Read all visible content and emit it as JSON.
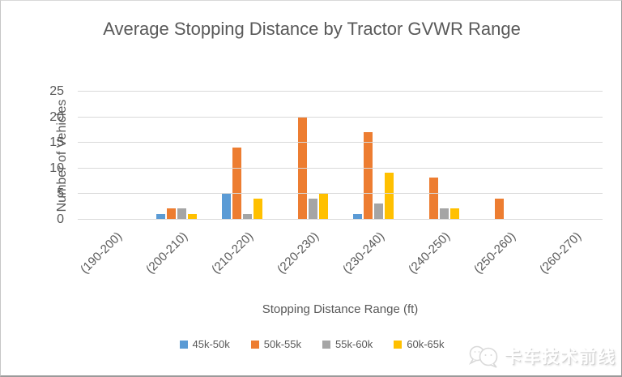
{
  "chart_data": {
    "type": "bar",
    "title": "Average Stopping Distance by Tractor GVWR Range",
    "xlabel": "Stopping Distance Range (ft)",
    "ylabel": "Number of Vehicles",
    "categories": [
      "(190-200)",
      "(200-210)",
      "(210-220)",
      "(220-230)",
      "(230-240)",
      "(240-250)",
      "(250-260)",
      "(260-270)"
    ],
    "series": [
      {
        "name": "45k-50k",
        "color": "#5B9BD5",
        "values": [
          0,
          1,
          5,
          0,
          1,
          0,
          0,
          0
        ]
      },
      {
        "name": "50k-55k",
        "color": "#ED7D31",
        "values": [
          0,
          2,
          14,
          20,
          17,
          8,
          4,
          0
        ]
      },
      {
        "name": "55k-60k",
        "color": "#A5A5A5",
        "values": [
          0,
          2,
          1,
          4,
          3,
          2,
          0,
          0
        ]
      },
      {
        "name": "60k-65k",
        "color": "#FFC000",
        "values": [
          0,
          1,
          4,
          5,
          9,
          2,
          0,
          0
        ]
      }
    ],
    "ylim": [
      0,
      25
    ],
    "ytick_step": 5,
    "grid": true,
    "legend_position": "bottom",
    "gridline_color": "#D9D9D9",
    "text_color": "#595959"
  },
  "watermark": {
    "text": "卡车技术前线",
    "icon": "chat-bubbles-logo",
    "color": "#d9d9d9"
  }
}
